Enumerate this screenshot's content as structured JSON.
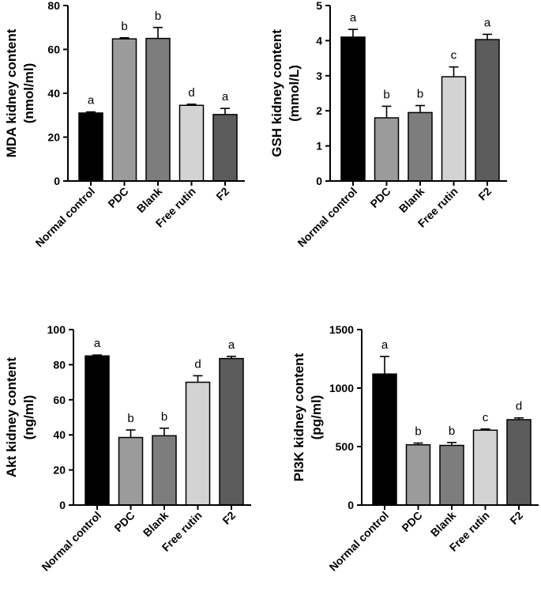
{
  "bar_colors": [
    "#000000",
    "#9b9b9b",
    "#7d7d7d",
    "#d3d3d3",
    "#5c5c5c"
  ],
  "chart_data": [
    {
      "id": "mda",
      "type": "bar",
      "ylabel_lines": [
        "MDA kidney content",
        "(nmol/ml)"
      ],
      "ylim": [
        0,
        80
      ],
      "yticks": [
        0,
        20,
        40,
        60,
        80
      ],
      "categories": [
        "Normal control",
        "PDC",
        "Blank",
        "Free rutin",
        "F2"
      ],
      "values": [
        31,
        64.8,
        65,
        34.5,
        30.3
      ],
      "errors": [
        0.5,
        0.5,
        5,
        0.5,
        2.8
      ],
      "significance": [
        "a",
        "b",
        "b",
        "d",
        "a"
      ]
    },
    {
      "id": "gsh",
      "type": "bar",
      "ylabel_lines": [
        "GSH kidney content",
        "(mmol/L)"
      ],
      "ylim": [
        0,
        5
      ],
      "yticks": [
        0,
        1,
        2,
        3,
        4,
        5
      ],
      "categories": [
        "Normal control",
        "PDC",
        "Blank",
        "Free rutin",
        "F2"
      ],
      "values": [
        4.1,
        1.8,
        1.95,
        2.97,
        4.03
      ],
      "errors": [
        0.22,
        0.33,
        0.2,
        0.28,
        0.15
      ],
      "significance": [
        "a",
        "b",
        "b",
        "c",
        "a"
      ]
    },
    {
      "id": "akt",
      "type": "bar",
      "ylabel_lines": [
        "Akt kidney content",
        "(ng/ml)"
      ],
      "ylim": [
        0,
        100
      ],
      "yticks": [
        0,
        20,
        40,
        60,
        80,
        100
      ],
      "categories": [
        "Normal control",
        "PDC",
        "Blank",
        "Free rutin",
        "F2"
      ],
      "values": [
        85,
        38.5,
        39.5,
        70,
        83.5
      ],
      "errors": [
        0.5,
        4.3,
        4.3,
        3.7,
        1.2
      ],
      "significance": [
        "a",
        "b",
        "b",
        "d",
        "a"
      ]
    },
    {
      "id": "pi3k",
      "type": "bar",
      "ylabel_lines": [
        "PI3K kidney content",
        "(pg/ml)"
      ],
      "ylim": [
        0,
        1500
      ],
      "yticks": [
        0,
        500,
        1000,
        1500
      ],
      "categories": [
        "Normal control",
        "PDC",
        "Blank",
        "Free rutin",
        "F2"
      ],
      "values": [
        1120,
        515,
        510,
        640,
        730
      ],
      "errors": [
        150,
        15,
        25,
        10,
        15
      ],
      "significance": [
        "a",
        "b",
        "b",
        "c",
        "d"
      ]
    }
  ]
}
